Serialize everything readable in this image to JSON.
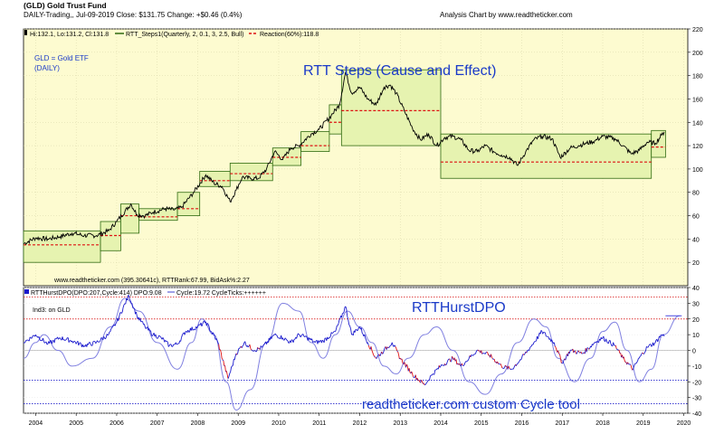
{
  "header": {
    "title": "(GLD) Gold Trust Fund",
    "subtitle": "DAILY-Trading,, Jul-09-2019  Close: $131.75  Change: +$0.46  (0.4%)",
    "credit": "Analysis Chart by www.readtheticker.com"
  },
  "colors": {
    "panel_bg": "#fdfbd0",
    "price": "#000000",
    "step_fill": "#e6f3b0",
    "step_line": "#2f6a10",
    "reaction": "#dd1111",
    "dpo_up": "#1a1acd",
    "dpo_down": "#e01010",
    "cycle": "#8080e0",
    "hi_band": "#dd3333",
    "lo_band": "#2222cc",
    "annot": "#1a3ac8"
  },
  "chart_data": [
    {
      "type": "line",
      "name": "price-panel",
      "legend": {
        "hlc": "Hi:132.1, Lo:131.2, Cl:131.8",
        "steps": "RTT_Steps1(Quarterly, 2, 0.1, 3, 2.5, Bull)",
        "reaction": "Reaction(60%):118.8"
      },
      "labels": {
        "symbol": "GLD = Gold ETF",
        "period": "(DAILY)",
        "annotation": "RTT Steps (Cause and Effect)",
        "footer": "www.readtheticker.com  (395.30641c), RTTRank:67.99, BidAsk%:2.27"
      },
      "ylim": [
        0,
        220
      ],
      "yticks": [
        20,
        40,
        60,
        80,
        100,
        120,
        140,
        160,
        180,
        200,
        220
      ],
      "xlim": [
        2003.7,
        2020.1
      ],
      "price_points": [
        [
          2003.7,
          36
        ],
        [
          2004.0,
          41
        ],
        [
          2004.3,
          40
        ],
        [
          2004.6,
          42
        ],
        [
          2004.9,
          45
        ],
        [
          2005.2,
          43
        ],
        [
          2005.5,
          43
        ],
        [
          2005.8,
          47
        ],
        [
          2006.0,
          55
        ],
        [
          2006.35,
          70
        ],
        [
          2006.5,
          61
        ],
        [
          2006.7,
          60
        ],
        [
          2006.9,
          63
        ],
        [
          2007.2,
          66
        ],
        [
          2007.4,
          65
        ],
        [
          2007.6,
          67
        ],
        [
          2007.9,
          80
        ],
        [
          2008.2,
          95
        ],
        [
          2008.4,
          88
        ],
        [
          2008.6,
          85
        ],
        [
          2008.8,
          72
        ],
        [
          2008.95,
          82
        ],
        [
          2009.1,
          93
        ],
        [
          2009.3,
          92
        ],
        [
          2009.5,
          92
        ],
        [
          2009.7,
          100
        ],
        [
          2009.9,
          115
        ],
        [
          2010.1,
          108
        ],
        [
          2010.3,
          118
        ],
        [
          2010.5,
          120
        ],
        [
          2010.8,
          130
        ],
        [
          2011.0,
          134
        ],
        [
          2011.3,
          146
        ],
        [
          2011.5,
          155
        ],
        [
          2011.65,
          183
        ],
        [
          2011.8,
          165
        ],
        [
          2012.0,
          170
        ],
        [
          2012.2,
          160
        ],
        [
          2012.4,
          155
        ],
        [
          2012.6,
          170
        ],
        [
          2012.75,
          172
        ],
        [
          2012.9,
          165
        ],
        [
          2013.1,
          150
        ],
        [
          2013.3,
          135
        ],
        [
          2013.5,
          125
        ],
        [
          2013.7,
          130
        ],
        [
          2013.9,
          120
        ],
        [
          2014.1,
          127
        ],
        [
          2014.3,
          128
        ],
        [
          2014.5,
          125
        ],
        [
          2014.7,
          116
        ],
        [
          2014.9,
          115
        ],
        [
          2015.1,
          120
        ],
        [
          2015.3,
          115
        ],
        [
          2015.5,
          112
        ],
        [
          2015.7,
          110
        ],
        [
          2015.9,
          103
        ],
        [
          2016.1,
          115
        ],
        [
          2016.3,
          125
        ],
        [
          2016.5,
          128
        ],
        [
          2016.75,
          126
        ],
        [
          2016.95,
          110
        ],
        [
          2017.2,
          118
        ],
        [
          2017.4,
          120
        ],
        [
          2017.6,
          122
        ],
        [
          2017.8,
          124
        ],
        [
          2018.0,
          128
        ],
        [
          2018.3,
          126
        ],
        [
          2018.5,
          120
        ],
        [
          2018.7,
          113
        ],
        [
          2018.9,
          116
        ],
        [
          2019.1,
          123
        ],
        [
          2019.3,
          122
        ],
        [
          2019.45,
          129
        ],
        [
          2019.52,
          131.8
        ]
      ],
      "step_boxes": [
        [
          2003.7,
          2005.6,
          20,
          47
        ],
        [
          2005.6,
          2006.1,
          30,
          55
        ],
        [
          2006.1,
          2006.55,
          45,
          70
        ],
        [
          2006.55,
          2007.5,
          56,
          66
        ],
        [
          2007.5,
          2008.05,
          60,
          80
        ],
        [
          2008.05,
          2008.8,
          85,
          98
        ],
        [
          2008.8,
          2009.85,
          90,
          105
        ],
        [
          2009.85,
          2010.55,
          103,
          118
        ],
        [
          2010.55,
          2011.25,
          115,
          132
        ],
        [
          2011.25,
          2011.55,
          130,
          155
        ],
        [
          2011.55,
          2014.0,
          120,
          185
        ],
        [
          2014.0,
          2019.2,
          92,
          130
        ],
        [
          2019.2,
          2019.55,
          110,
          133
        ]
      ],
      "reaction_steps": [
        [
          2003.7,
          2005.6,
          35
        ],
        [
          2005.6,
          2006.1,
          43
        ],
        [
          2006.1,
          2006.55,
          60
        ],
        [
          2006.55,
          2007.5,
          59
        ],
        [
          2007.5,
          2008.05,
          66
        ],
        [
          2008.05,
          2008.8,
          90
        ],
        [
          2008.8,
          2009.85,
          96
        ],
        [
          2009.85,
          2010.55,
          110
        ],
        [
          2010.55,
          2011.25,
          120
        ],
        [
          2011.25,
          2011.55,
          140
        ],
        [
          2011.55,
          2014.0,
          150
        ],
        [
          2014.0,
          2019.2,
          106
        ],
        [
          2019.2,
          2019.55,
          118.8
        ]
      ]
    },
    {
      "type": "line",
      "name": "dpo-panel",
      "legend": {
        "dpo": "RTTHurstDPO(DPO:207,Cycle:414) DPO:9.08",
        "cycle": "Cycle:19.72  CycleTicks:++++++"
      },
      "labels": {
        "series_note": "Ind3:  on GLD",
        "annotation": "RTTHurstDPO",
        "tool_note": "readtheticker.com custom Cycle tool"
      },
      "ylim": [
        -40,
        40
      ],
      "yticks": [
        -40,
        -30,
        -20,
        -10,
        0,
        10,
        20,
        30,
        40
      ],
      "bands": [
        34,
        20,
        -19,
        -34
      ],
      "dpo_points": [
        [
          2003.7,
          5
        ],
        [
          2004.0,
          10
        ],
        [
          2004.3,
          4
        ],
        [
          2004.6,
          8
        ],
        [
          2004.9,
          6
        ],
        [
          2005.2,
          3
        ],
        [
          2005.5,
          5
        ],
        [
          2005.8,
          10
        ],
        [
          2006.0,
          18
        ],
        [
          2006.3,
          35
        ],
        [
          2006.5,
          22
        ],
        [
          2006.7,
          15
        ],
        [
          2006.9,
          10
        ],
        [
          2007.1,
          8
        ],
        [
          2007.3,
          3
        ],
        [
          2007.5,
          4
        ],
        [
          2007.7,
          12
        ],
        [
          2008.0,
          15
        ],
        [
          2008.2,
          18
        ],
        [
          2008.5,
          5
        ],
        [
          2008.75,
          -18
        ],
        [
          2008.95,
          -2
        ],
        [
          2009.15,
          5
        ],
        [
          2009.4,
          0
        ],
        [
          2009.6,
          2
        ],
        [
          2009.9,
          10
        ],
        [
          2010.1,
          8
        ],
        [
          2010.3,
          5
        ],
        [
          2010.5,
          10
        ],
        [
          2010.7,
          8
        ],
        [
          2010.9,
          5
        ],
        [
          2011.1,
          6
        ],
        [
          2011.4,
          12
        ],
        [
          2011.65,
          28
        ],
        [
          2011.8,
          10
        ],
        [
          2012.0,
          15
        ],
        [
          2012.2,
          5
        ],
        [
          2012.4,
          -5
        ],
        [
          2012.6,
          0
        ],
        [
          2012.8,
          5
        ],
        [
          2013.0,
          -5
        ],
        [
          2013.3,
          -15
        ],
        [
          2013.6,
          -22
        ],
        [
          2013.8,
          -15
        ],
        [
          2014.0,
          -10
        ],
        [
          2014.3,
          -5
        ],
        [
          2014.5,
          -10
        ],
        [
          2014.7,
          -5
        ],
        [
          2014.9,
          0
        ],
        [
          2015.2,
          -3
        ],
        [
          2015.5,
          -10
        ],
        [
          2015.75,
          -12
        ],
        [
          2016.0,
          -5
        ],
        [
          2016.3,
          5
        ],
        [
          2016.5,
          12
        ],
        [
          2016.8,
          5
        ],
        [
          2017.0,
          -8
        ],
        [
          2017.2,
          0
        ],
        [
          2017.5,
          -2
        ],
        [
          2017.8,
          5
        ],
        [
          2018.0,
          8
        ],
        [
          2018.3,
          3
        ],
        [
          2018.5,
          -5
        ],
        [
          2018.75,
          -12
        ],
        [
          2018.9,
          -5
        ],
        [
          2019.1,
          2
        ],
        [
          2019.3,
          5
        ],
        [
          2019.45,
          10
        ],
        [
          2019.52,
          9
        ]
      ],
      "cycle_points": [
        [
          2003.7,
          -5
        ],
        [
          2004.0,
          5
        ],
        [
          2004.2,
          10
        ],
        [
          2004.55,
          0
        ],
        [
          2004.9,
          -10
        ],
        [
          2005.4,
          -5
        ],
        [
          2005.85,
          15
        ],
        [
          2006.2,
          33
        ],
        [
          2006.55,
          25
        ],
        [
          2007.0,
          5
        ],
        [
          2007.5,
          -12
        ],
        [
          2007.85,
          5
        ],
        [
          2008.1,
          20
        ],
        [
          2008.4,
          10
        ],
        [
          2008.7,
          -20
        ],
        [
          2008.95,
          -38
        ],
        [
          2009.3,
          -25
        ],
        [
          2009.7,
          5
        ],
        [
          2010.1,
          30
        ],
        [
          2010.5,
          25
        ],
        [
          2010.8,
          5
        ],
        [
          2011.1,
          -5
        ],
        [
          2011.4,
          10
        ],
        [
          2011.7,
          25
        ],
        [
          2012.0,
          15
        ],
        [
          2012.3,
          5
        ],
        [
          2012.6,
          -10
        ],
        [
          2012.9,
          -15
        ],
        [
          2013.2,
          -5
        ],
        [
          2013.6,
          10
        ],
        [
          2013.9,
          15
        ],
        [
          2014.3,
          0
        ],
        [
          2014.7,
          -20
        ],
        [
          2015.1,
          -28
        ],
        [
          2015.5,
          -15
        ],
        [
          2015.9,
          5
        ],
        [
          2016.3,
          20
        ],
        [
          2016.6,
          15
        ],
        [
          2016.9,
          -5
        ],
        [
          2017.3,
          -20
        ],
        [
          2017.7,
          -5
        ],
        [
          2018.0,
          12
        ],
        [
          2018.3,
          18
        ],
        [
          2018.6,
          0
        ],
        [
          2018.9,
          -20
        ],
        [
          2019.2,
          -12
        ],
        [
          2019.5,
          10
        ],
        [
          2019.9,
          22
        ]
      ],
      "cycle_tail": [
        [
          2019.55,
          22
        ],
        [
          2019.95,
          22
        ]
      ]
    }
  ],
  "x_axis": {
    "ticks": [
      "2004",
      "2005",
      "2006",
      "2007",
      "2008",
      "2009",
      "2010",
      "2011",
      "2012",
      "2013",
      "2014",
      "2015",
      "2016",
      "2017",
      "2018",
      "2019",
      "2020"
    ]
  }
}
